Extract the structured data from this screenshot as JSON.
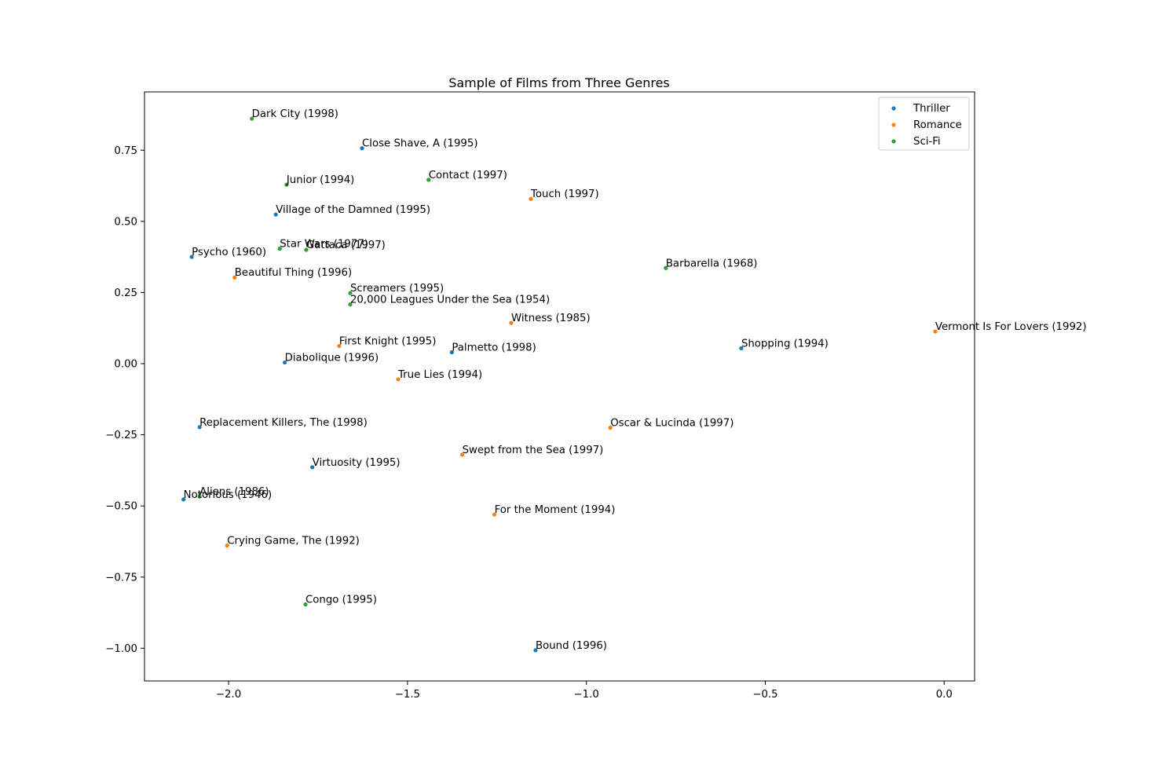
{
  "chart_data": {
    "type": "scatter",
    "title": "Sample of Films from Three Genres",
    "xlabel": "",
    "ylabel": "",
    "xlim": [
      -2.235,
      0.085
    ],
    "ylim": [
      -1.115,
      0.955
    ],
    "xticks": [
      -2.0,
      -1.5,
      -1.0,
      -0.5,
      0.0
    ],
    "xtick_labels": [
      "−2.0",
      "−1.5",
      "−1.0",
      "−0.5",
      "0.0"
    ],
    "yticks": [
      0.75,
      0.5,
      0.25,
      0.0,
      -0.25,
      -0.5,
      -0.75,
      -1.0
    ],
    "ytick_labels": [
      "0.75",
      "0.50",
      "0.25",
      "0.00",
      "−0.25",
      "−0.50",
      "−0.75",
      "−1.00"
    ],
    "grid": false,
    "legend_position": "top-right",
    "series": [
      {
        "name": "Thriller",
        "color": "#1f77b4",
        "points": [
          {
            "x": -1.627,
            "y": 0.757,
            "label": "Close Shave, A (1995)"
          },
          {
            "x": -1.868,
            "y": 0.524,
            "label": "Village of the Damned (1995)"
          },
          {
            "x": -2.103,
            "y": 0.375,
            "label": "Psycho (1960)"
          },
          {
            "x": -1.843,
            "y": 0.004,
            "label": "Diabolique (1996)"
          },
          {
            "x": -1.376,
            "y": 0.04,
            "label": "Palmetto (1998)"
          },
          {
            "x": -0.567,
            "y": 0.054,
            "label": "Shopping (1994)"
          },
          {
            "x": -2.081,
            "y": -0.223,
            "label": "Replacement Killers, The (1998)"
          },
          {
            "x": -1.766,
            "y": -0.364,
            "label": "Virtuosity (1995)"
          },
          {
            "x": -2.126,
            "y": -0.477,
            "label": "Notorious (1946)"
          },
          {
            "x": -1.142,
            "y": -1.007,
            "label": "Bound (1996)"
          }
        ]
      },
      {
        "name": "Romance",
        "color": "#ff7f0e",
        "points": [
          {
            "x": -1.155,
            "y": 0.579,
            "label": "Touch (1997)"
          },
          {
            "x": -1.983,
            "y": 0.303,
            "label": "Beautiful Thing (1996)"
          },
          {
            "x": -1.21,
            "y": 0.143,
            "label": "Witness (1985)"
          },
          {
            "x": -0.025,
            "y": 0.113,
            "label": "Vermont Is For Lovers (1992)"
          },
          {
            "x": -1.691,
            "y": 0.062,
            "label": "First Knight (1995)"
          },
          {
            "x": -1.526,
            "y": -0.055,
            "label": "True Lies (1994)"
          },
          {
            "x": -0.933,
            "y": -0.225,
            "label": "Oscar & Lucinda (1997)"
          },
          {
            "x": -1.347,
            "y": -0.32,
            "label": "Swept from the Sea (1997)"
          },
          {
            "x": -1.257,
            "y": -0.53,
            "label": "For the Moment (1994)"
          },
          {
            "x": -2.004,
            "y": -0.639,
            "label": "Crying Game, The (1992)"
          }
        ]
      },
      {
        "name": "Sci-Fi",
        "color": "#2ca02c",
        "points": [
          {
            "x": -1.935,
            "y": 0.861,
            "label": "Dark City (1998)"
          },
          {
            "x": -1.441,
            "y": 0.646,
            "label": "Contact (1997)"
          },
          {
            "x": -1.838,
            "y": 0.629,
            "label": "Junior (1994)"
          },
          {
            "x": -1.857,
            "y": 0.404,
            "label": "Star Wars (1977)"
          },
          {
            "x": -1.783,
            "y": 0.4,
            "label": "Gattaca (1997)"
          },
          {
            "x": -0.778,
            "y": 0.336,
            "label": "Barbarella (1968)"
          },
          {
            "x": -1.66,
            "y": 0.248,
            "label": "Screamers (1995)"
          },
          {
            "x": -1.66,
            "y": 0.208,
            "label": "20,000 Leagues Under the Sea (1954)"
          },
          {
            "x": -2.081,
            "y": -0.467,
            "label": "Aliens (1986)"
          },
          {
            "x": -1.785,
            "y": -0.846,
            "label": "Congo (1995)"
          }
        ]
      }
    ]
  }
}
